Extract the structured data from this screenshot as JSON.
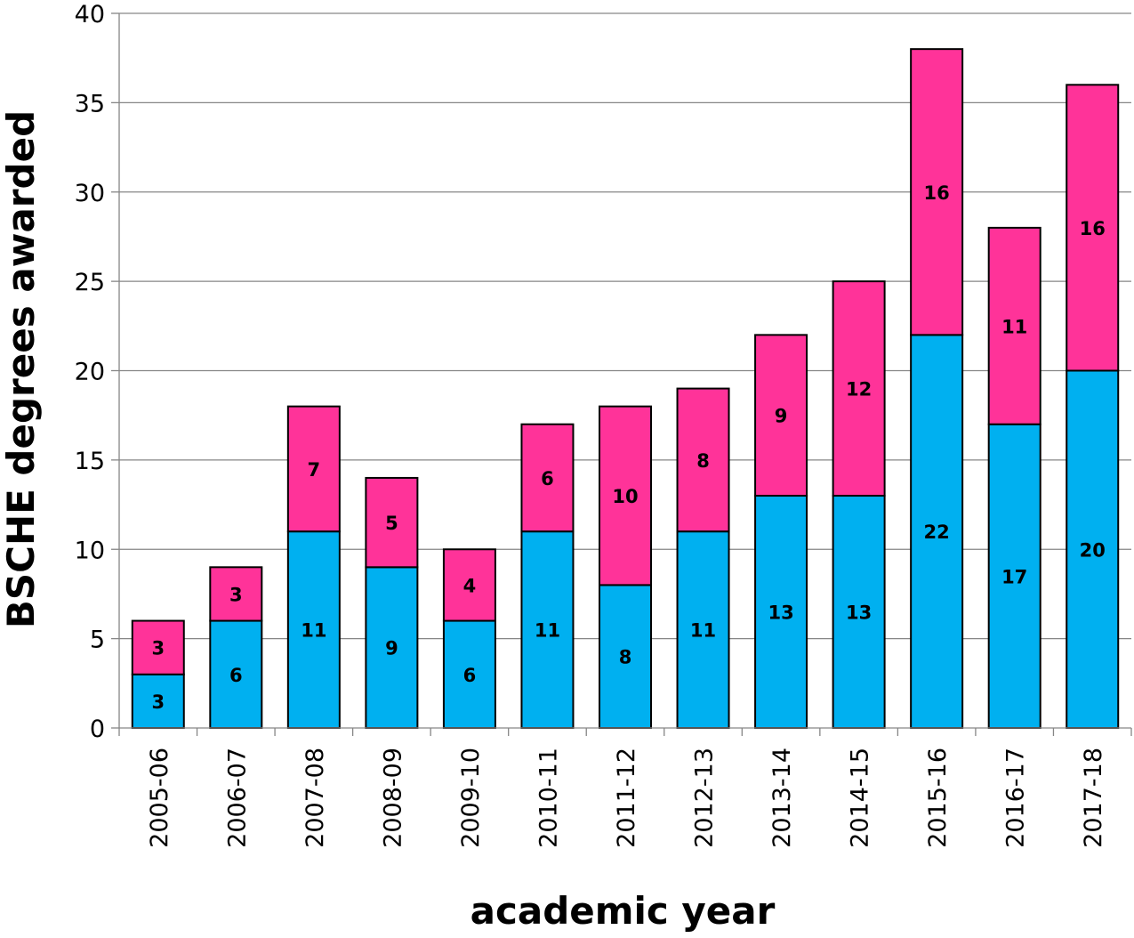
{
  "chart_data": {
    "type": "bar",
    "stacked": true,
    "categories": [
      "2005-06",
      "2006-07",
      "2007-08",
      "2008-09",
      "2009-10",
      "2010-11",
      "2011-12",
      "2012-13",
      "2013-14",
      "2014-15",
      "2015-16",
      "2016-17",
      "2017-18"
    ],
    "series": [
      {
        "color": "#00B0F0",
        "values": [
          3,
          6,
          11,
          9,
          6,
          11,
          8,
          11,
          13,
          13,
          22,
          17,
          20
        ]
      },
      {
        "color": "#FF3399",
        "values": [
          3,
          3,
          7,
          5,
          4,
          6,
          10,
          8,
          9,
          12,
          16,
          11,
          16
        ]
      }
    ],
    "xlabel": "academic year",
    "ylabel": "BSCHE degrees awarded",
    "ylim": [
      0,
      40
    ],
    "yticks": [
      0,
      5,
      10,
      15,
      20,
      25,
      30,
      35,
      40
    ],
    "grid": true,
    "legend": "none"
  }
}
